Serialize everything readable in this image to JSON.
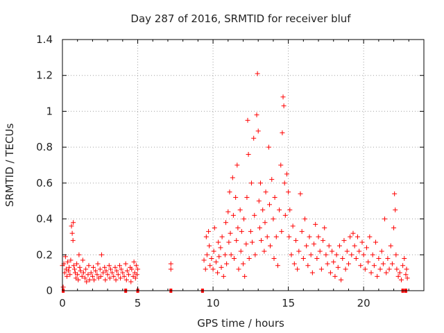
{
  "chart_data": {
    "type": "scatter",
    "title": "Day 287 of 2016, SRMTID for receiver bluf",
    "xlabel": "GPS time / hours",
    "ylabel": "SRMTID / TECUs",
    "xlim": [
      0,
      24
    ],
    "ylim": [
      0,
      1.4
    ],
    "grid": true,
    "marker": "+",
    "color": "#ff0000",
    "x_ticks": [
      0,
      5,
      10,
      15,
      20
    ],
    "x_tick_labels": [
      "0",
      "5",
      "10",
      "15",
      "20"
    ],
    "y_ticks": [
      0,
      0.2,
      0.4,
      0.6,
      0.8,
      1.0,
      1.2,
      1.4
    ],
    "y_tick_labels": [
      "0",
      "0.2",
      "0.4",
      "0.6",
      "0.8",
      "1",
      "1.2",
      "1.4"
    ],
    "series": [
      {
        "name": "SRMTID",
        "points": [
          [
            0.0,
            0.14
          ],
          [
            0.05,
            0.02
          ],
          [
            0.1,
            0.15
          ],
          [
            0.15,
            0.1
          ],
          [
            0.2,
            0.19
          ],
          [
            0.25,
            0.12
          ],
          [
            0.3,
            0.08
          ],
          [
            0.35,
            0.16
          ],
          [
            0.4,
            0.11
          ],
          [
            0.45,
            0.13
          ],
          [
            0.5,
            0.09
          ],
          [
            0.55,
            0.17
          ],
          [
            0.6,
            0.36
          ],
          [
            0.65,
            0.32
          ],
          [
            0.7,
            0.28
          ],
          [
            0.72,
            0.38
          ],
          [
            0.75,
            0.14
          ],
          [
            0.8,
            0.12
          ],
          [
            0.85,
            0.1
          ],
          [
            0.9,
            0.07
          ],
          [
            0.95,
            0.15
          ],
          [
            1.0,
            0.09
          ],
          [
            1.05,
            0.06
          ],
          [
            1.1,
            0.2
          ],
          [
            1.15,
            0.13
          ],
          [
            1.2,
            0.11
          ],
          [
            1.3,
            0.08
          ],
          [
            1.35,
            0.17
          ],
          [
            1.4,
            0.1
          ],
          [
            1.5,
            0.07
          ],
          [
            1.55,
            0.12
          ],
          [
            1.6,
            0.05
          ],
          [
            1.7,
            0.09
          ],
          [
            1.75,
            0.14
          ],
          [
            1.8,
            0.06
          ],
          [
            1.9,
            0.1
          ],
          [
            2.0,
            0.08
          ],
          [
            2.05,
            0.13
          ],
          [
            2.1,
            0.06
          ],
          [
            2.2,
            0.11
          ],
          [
            2.3,
            0.09
          ],
          [
            2.35,
            0.15
          ],
          [
            2.4,
            0.07
          ],
          [
            2.5,
            0.12
          ],
          [
            2.55,
            0.08
          ],
          [
            2.6,
            0.2
          ],
          [
            2.7,
            0.1
          ],
          [
            2.8,
            0.13
          ],
          [
            2.85,
            0.06
          ],
          [
            2.9,
            0.11
          ],
          [
            3.0,
            0.09
          ],
          [
            3.1,
            0.14
          ],
          [
            3.15,
            0.07
          ],
          [
            3.2,
            0.12
          ],
          [
            3.3,
            0.1
          ],
          [
            3.4,
            0.08
          ],
          [
            3.5,
            0.13
          ],
          [
            3.55,
            0.06
          ],
          [
            3.6,
            0.11
          ],
          [
            3.7,
            0.09
          ],
          [
            3.8,
            0.14
          ],
          [
            3.85,
            0.07
          ],
          [
            3.9,
            0.12
          ],
          [
            4.0,
            0.1
          ],
          [
            4.1,
            0.08
          ],
          [
            4.2,
            0.15
          ],
          [
            4.25,
            0.06
          ],
          [
            4.3,
            0.11
          ],
          [
            4.4,
            0.09
          ],
          [
            4.5,
            0.13
          ],
          [
            4.55,
            0.05
          ],
          [
            4.6,
            0.12
          ],
          [
            4.7,
            0.08
          ],
          [
            4.75,
            0.16
          ],
          [
            4.8,
            0.1
          ],
          [
            4.85,
            0.07
          ],
          [
            4.9,
            0.14
          ],
          [
            4.95,
            0.09
          ],
          [
            5.0,
            0.12
          ],
          [
            7.2,
            0.15
          ],
          [
            7.2,
            0.12
          ],
          [
            9.4,
            0.17
          ],
          [
            9.5,
            0.12
          ],
          [
            9.55,
            0.3
          ],
          [
            9.6,
            0.2
          ],
          [
            9.7,
            0.33
          ],
          [
            9.75,
            0.25
          ],
          [
            9.8,
            0.14
          ],
          [
            9.9,
            0.18
          ],
          [
            10.0,
            0.12
          ],
          [
            10.05,
            0.22
          ],
          [
            10.1,
            0.35
          ],
          [
            10.2,
            0.16
          ],
          [
            10.3,
            0.1
          ],
          [
            10.35,
            0.27
          ],
          [
            10.4,
            0.19
          ],
          [
            10.5,
            0.24
          ],
          [
            10.55,
            0.13
          ],
          [
            10.6,
            0.3
          ],
          [
            10.7,
            0.08
          ],
          [
            10.8,
            0.2
          ],
          [
            10.85,
            0.38
          ],
          [
            10.9,
            0.15
          ],
          [
            11.0,
            0.44
          ],
          [
            11.05,
            0.27
          ],
          [
            11.1,
            0.55
          ],
          [
            11.15,
            0.32
          ],
          [
            11.2,
            0.2
          ],
          [
            11.3,
            0.63
          ],
          [
            11.35,
            0.42
          ],
          [
            11.4,
            0.18
          ],
          [
            11.5,
            0.52
          ],
          [
            11.55,
            0.28
          ],
          [
            11.6,
            0.7
          ],
          [
            11.65,
            0.35
          ],
          [
            11.7,
            0.12
          ],
          [
            11.8,
            0.45
          ],
          [
            11.85,
            0.22
          ],
          [
            11.9,
            0.33
          ],
          [
            12.0,
            0.15
          ],
          [
            12.05,
            0.4
          ],
          [
            12.1,
            0.08
          ],
          [
            12.2,
            0.26
          ],
          [
            12.25,
            0.52
          ],
          [
            12.3,
            0.95
          ],
          [
            12.35,
            0.76
          ],
          [
            12.4,
            0.18
          ],
          [
            12.5,
            0.33
          ],
          [
            12.55,
            0.6
          ],
          [
            12.6,
            0.27
          ],
          [
            12.7,
            0.85
          ],
          [
            12.75,
            0.42
          ],
          [
            12.8,
            0.2
          ],
          [
            12.9,
            0.98
          ],
          [
            12.95,
            1.21
          ],
          [
            13.0,
            0.89
          ],
          [
            13.05,
            0.5
          ],
          [
            13.1,
            0.35
          ],
          [
            13.15,
            0.6
          ],
          [
            13.2,
            0.28
          ],
          [
            13.3,
            0.45
          ],
          [
            13.4,
            0.22
          ],
          [
            13.45,
            0.38
          ],
          [
            13.5,
            0.55
          ],
          [
            13.6,
            0.3
          ],
          [
            13.7,
            0.8
          ],
          [
            13.75,
            0.48
          ],
          [
            13.8,
            0.25
          ],
          [
            13.9,
            0.62
          ],
          [
            14.0,
            0.4
          ],
          [
            14.05,
            0.18
          ],
          [
            14.1,
            0.52
          ],
          [
            14.2,
            0.3
          ],
          [
            14.3,
            0.14
          ],
          [
            14.4,
            0.45
          ],
          [
            14.5,
            0.7
          ],
          [
            14.55,
            0.33
          ],
          [
            14.6,
            0.88
          ],
          [
            14.65,
            1.08
          ],
          [
            14.7,
            1.03
          ],
          [
            14.75,
            0.6
          ],
          [
            14.8,
            0.42
          ],
          [
            14.9,
            0.65
          ],
          [
            15.0,
            0.55
          ],
          [
            15.05,
            0.3
          ],
          [
            15.1,
            0.45
          ],
          [
            15.2,
            0.2
          ],
          [
            15.3,
            0.36
          ],
          [
            15.4,
            0.15
          ],
          [
            15.5,
            0.28
          ],
          [
            15.6,
            0.12
          ],
          [
            15.7,
            0.22
          ],
          [
            15.8,
            0.54
          ],
          [
            15.9,
            0.33
          ],
          [
            16.0,
            0.18
          ],
          [
            16.1,
            0.4
          ],
          [
            16.2,
            0.25
          ],
          [
            16.3,
            0.14
          ],
          [
            16.4,
            0.3
          ],
          [
            16.5,
            0.2
          ],
          [
            16.6,
            0.1
          ],
          [
            16.7,
            0.26
          ],
          [
            16.8,
            0.37
          ],
          [
            16.9,
            0.18
          ],
          [
            17.0,
            0.3
          ],
          [
            17.1,
            0.22
          ],
          [
            17.2,
            0.12
          ],
          [
            17.3,
            0.28
          ],
          [
            17.4,
            0.35
          ],
          [
            17.5,
            0.2
          ],
          [
            17.6,
            0.15
          ],
          [
            17.7,
            0.25
          ],
          [
            17.8,
            0.1
          ],
          [
            17.9,
            0.22
          ],
          [
            18.0,
            0.16
          ],
          [
            18.1,
            0.08
          ],
          [
            18.2,
            0.2
          ],
          [
            18.3,
            0.13
          ],
          [
            18.4,
            0.25
          ],
          [
            18.5,
            0.06
          ],
          [
            18.6,
            0.18
          ],
          [
            18.7,
            0.28
          ],
          [
            18.8,
            0.12
          ],
          [
            18.9,
            0.22
          ],
          [
            19.0,
            0.15
          ],
          [
            19.1,
            0.3
          ],
          [
            19.2,
            0.2
          ],
          [
            19.3,
            0.32
          ],
          [
            19.4,
            0.25
          ],
          [
            19.5,
            0.18
          ],
          [
            19.6,
            0.3
          ],
          [
            19.7,
            0.22
          ],
          [
            19.8,
            0.14
          ],
          [
            19.9,
            0.27
          ],
          [
            20.0,
            0.2
          ],
          [
            20.1,
            0.12
          ],
          [
            20.2,
            0.24
          ],
          [
            20.3,
            0.16
          ],
          [
            20.4,
            0.3
          ],
          [
            20.5,
            0.1
          ],
          [
            20.6,
            0.2
          ],
          [
            20.7,
            0.14
          ],
          [
            20.8,
            0.27
          ],
          [
            20.9,
            0.08
          ],
          [
            21.0,
            0.18
          ],
          [
            21.1,
            0.12
          ],
          [
            21.2,
            0.22
          ],
          [
            21.3,
            0.15
          ],
          [
            21.4,
            0.4
          ],
          [
            21.5,
            0.1
          ],
          [
            21.6,
            0.18
          ],
          [
            21.7,
            0.12
          ],
          [
            21.8,
            0.25
          ],
          [
            21.9,
            0.15
          ],
          [
            22.0,
            0.35
          ],
          [
            22.05,
            0.54
          ],
          [
            22.1,
            0.45
          ],
          [
            22.15,
            0.2
          ],
          [
            22.2,
            0.12
          ],
          [
            22.3,
            0.08
          ],
          [
            22.4,
            0.1
          ],
          [
            22.5,
            0.06
          ],
          [
            22.6,
            0.14
          ],
          [
            22.7,
            0.18
          ],
          [
            22.8,
            0.09
          ],
          [
            22.85,
            0.12
          ],
          [
            22.9,
            0.07
          ]
        ]
      }
    ],
    "zero_marks": [
      0.05,
      4.2,
      5.0,
      7.2,
      9.3,
      22.6,
      22.8
    ]
  }
}
